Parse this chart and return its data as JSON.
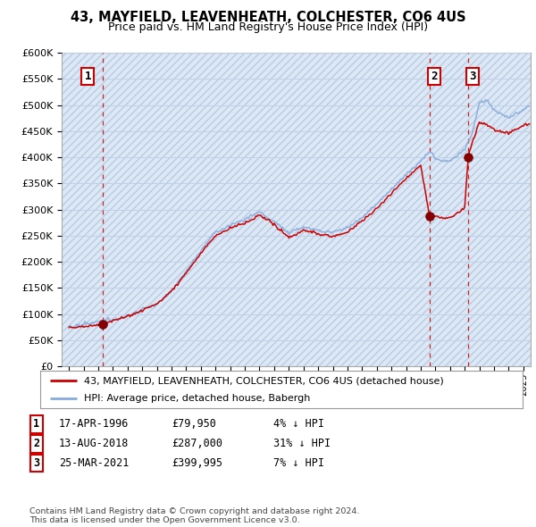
{
  "title": "43, MAYFIELD, LEAVENHEATH, COLCHESTER, CO6 4US",
  "subtitle": "Price paid vs. HM Land Registry's House Price Index (HPI)",
  "legend_line1": "43, MAYFIELD, LEAVENHEATH, COLCHESTER, CO6 4US (detached house)",
  "legend_line2": "HPI: Average price, detached house, Babergh",
  "sales": [
    {
      "num": 1,
      "date": "17-APR-1996",
      "price": 79950,
      "year": 1996.29
    },
    {
      "num": 2,
      "date": "13-AUG-2018",
      "price": 287000,
      "year": 2018.62
    },
    {
      "num": 3,
      "date": "25-MAR-2021",
      "price": 399995,
      "year": 2021.23
    }
  ],
  "table_rows": [
    [
      "1",
      "17-APR-1996",
      "£79,950",
      "4% ↓ HPI"
    ],
    [
      "2",
      "13-AUG-2018",
      "£287,000",
      "31% ↓ HPI"
    ],
    [
      "3",
      "25-MAR-2021",
      "£399,995",
      "7% ↓ HPI"
    ]
  ],
  "footer": "Contains HM Land Registry data © Crown copyright and database right 2024.\nThis data is licensed under the Open Government Licence v3.0.",
  "ylim": [
    0,
    600000
  ],
  "yticks": [
    0,
    50000,
    100000,
    150000,
    200000,
    250000,
    300000,
    350000,
    400000,
    450000,
    500000,
    550000,
    600000
  ],
  "ytick_labels": [
    "£0",
    "£50K",
    "£100K",
    "£150K",
    "£200K",
    "£250K",
    "£300K",
    "£350K",
    "£400K",
    "£450K",
    "£500K",
    "£550K",
    "£600K"
  ],
  "xmin": 1993.5,
  "xmax": 2025.5,
  "property_color": "#cc0000",
  "hpi_color": "#88aadd",
  "sale_dot_color": "#880000",
  "dashed_line_color": "#cc0000",
  "bg_color": "#dce8f5",
  "grid_color": "#c0d0e8"
}
